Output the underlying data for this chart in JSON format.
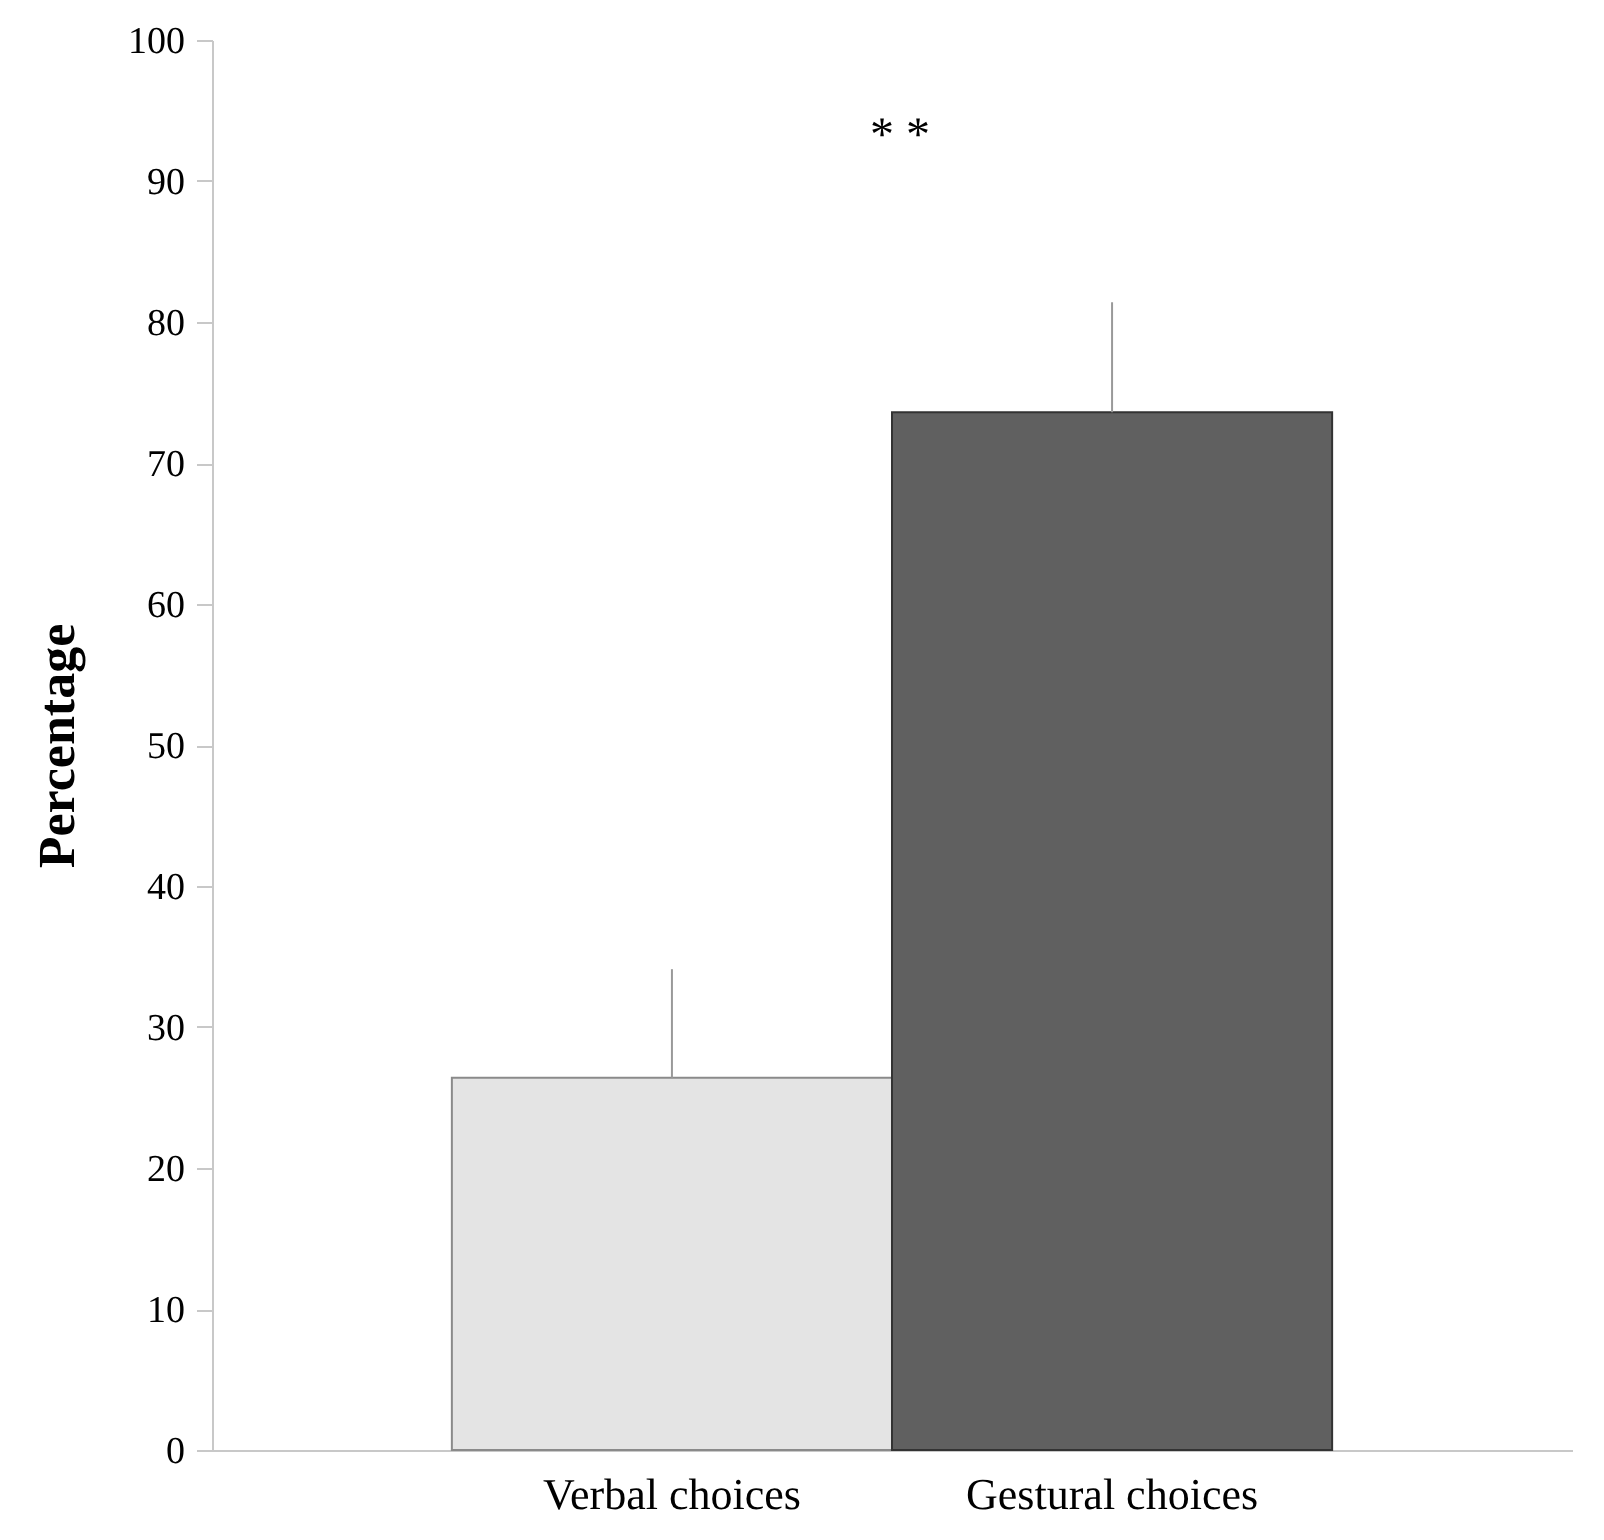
{
  "chart_data": {
    "type": "bar",
    "ylabel": "Percentage",
    "categories": [
      "Verbal choices",
      "Gestural choices"
    ],
    "values": [
      26.4,
      73.6
    ],
    "colors": [
      "#e4e4e4",
      "#606060"
    ],
    "errors": [
      [
        26.4,
        34.1
      ],
      [
        73.6,
        81.4
      ]
    ],
    "ylim": [
      0,
      100
    ],
    "yticks": [
      0,
      10,
      20,
      30,
      40,
      50,
      60,
      70,
      80,
      90,
      100
    ],
    "grid": false,
    "annotations": [
      "* *"
    ]
  }
}
